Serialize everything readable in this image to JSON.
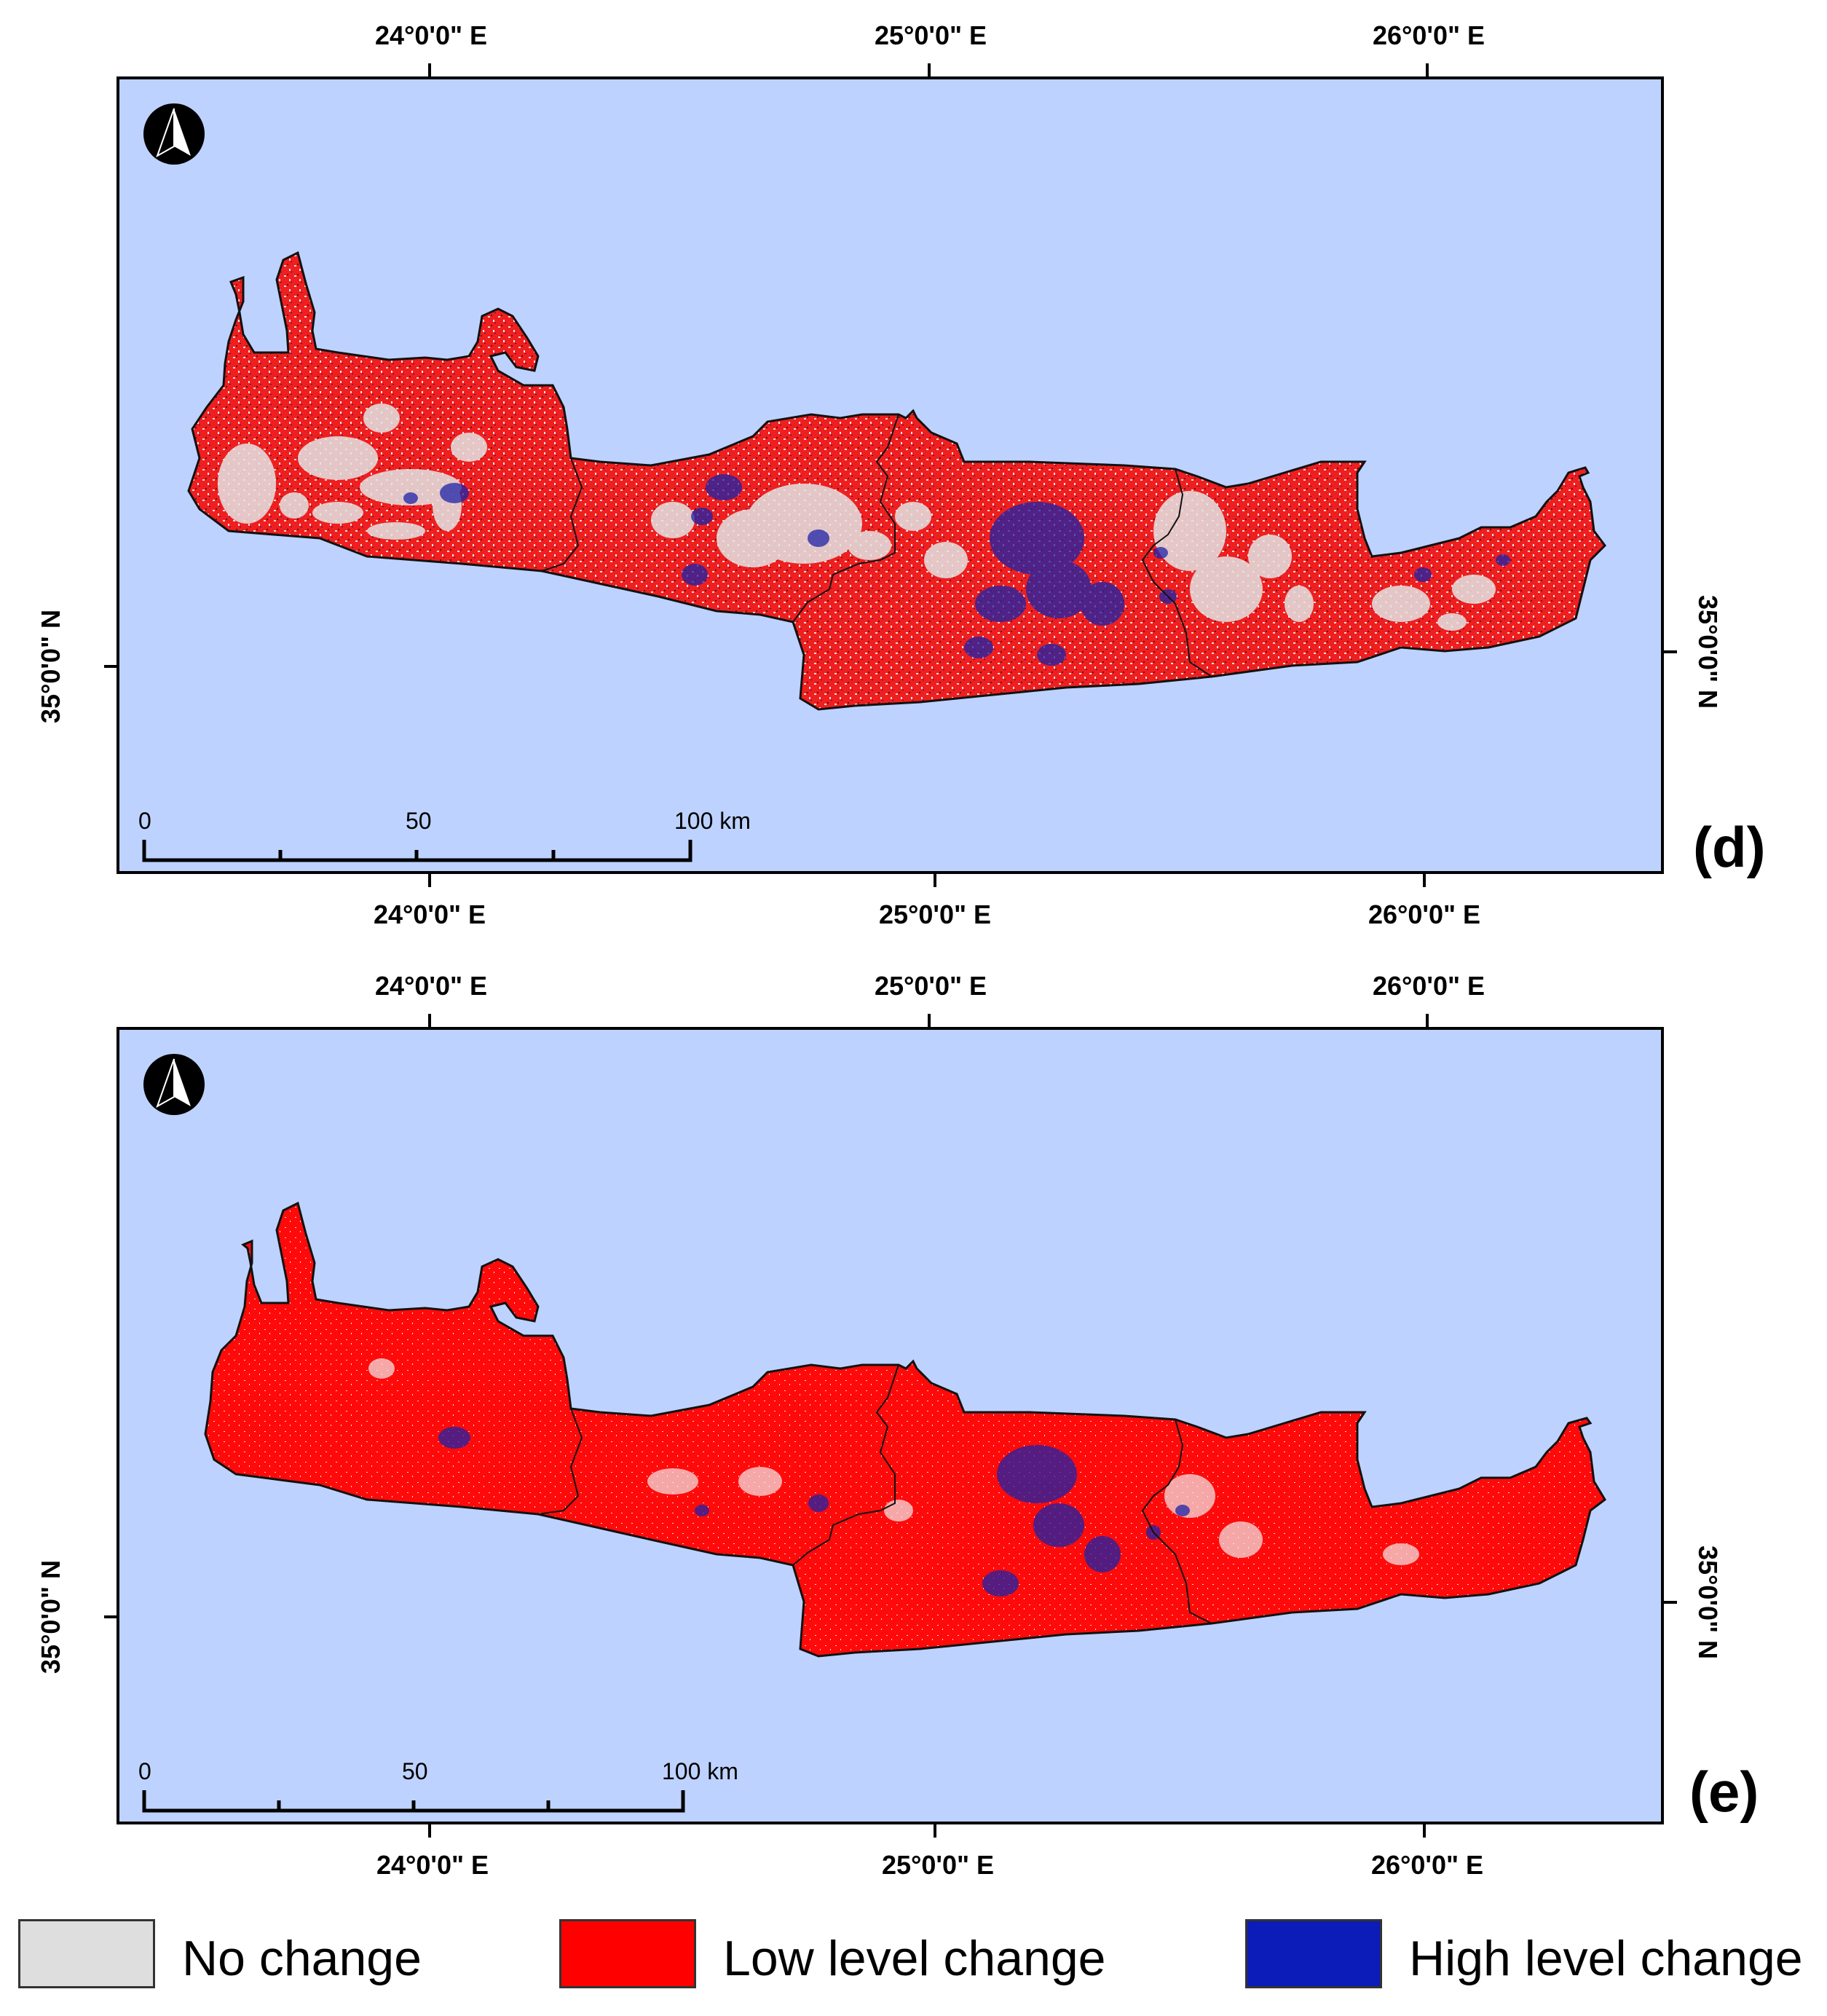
{
  "figure": {
    "panels": [
      {
        "id": "d",
        "label": "(d)",
        "top_lon_labels": [
          "24°0'0\" E",
          "25°0'0\" E",
          "26°0'0\" E"
        ],
        "bottom_lon_labels": [
          "24°0'0\" E",
          "25°0'0\" E",
          "26°0'0\" E"
        ],
        "left_lat_label": "35°0'0\" N",
        "right_lat_label": "35°0'0\" N",
        "scale_bar": {
          "labels": [
            "0",
            "50",
            "100 km"
          ]
        },
        "north_arrow": "north-arrow-icon"
      },
      {
        "id": "e",
        "label": "(e)",
        "top_lon_labels": [
          "24°0'0\" E",
          "25°0'0\" E",
          "26°0'0\" E"
        ],
        "bottom_lon_labels": [
          "24°0'0\" E",
          "25°0'0\" E",
          "26°0'0\" E"
        ],
        "left_lat_label": "35°0'0\" N",
        "right_lat_label": "35°0'0\" N",
        "scale_bar": {
          "labels": [
            "0",
            "50",
            "100 km"
          ]
        },
        "north_arrow": "north-arrow-icon"
      }
    ],
    "legend": [
      {
        "label": "No change",
        "color": "#dedede"
      },
      {
        "label": "Low level change",
        "color": "#ff0000"
      },
      {
        "label": "High level change",
        "color": "#0b1cb8"
      }
    ],
    "colors": {
      "sea": "#bed2ff",
      "land_d": "#ef1f1f",
      "land_e": "#ff0a0a",
      "high_change": "#1d23a8",
      "no_change": "#e4e4e4"
    }
  }
}
